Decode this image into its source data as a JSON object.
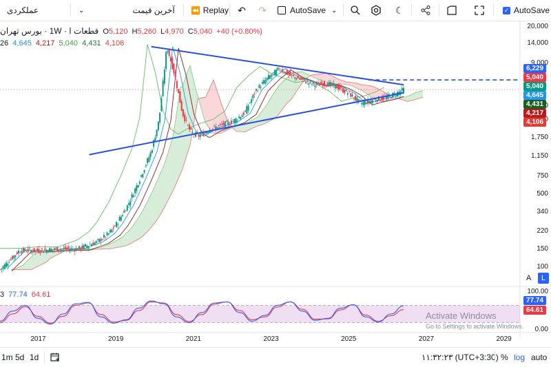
{
  "toolbar": {
    "performance_label": "عملکردی",
    "price_type_label": "آخرین قیمت",
    "replay_label": "Replay",
    "autosave_label": "AutoSave",
    "autosave_toggle_label": "AutoSave"
  },
  "legend": {
    "main": "قطعات ا · 1W · بورس تهران",
    "o_label": "O",
    "o_value": "5,120",
    "h_label": "H",
    "h_value": "5,260",
    "l_label": "L",
    "l_value": "4,970",
    "c_label": "C",
    "c_value": "5,040",
    "change": "+40 (+0.80%)",
    "ind_prefix": "26",
    "ind_values": [
      "4,645",
      "4,217",
      "5,040",
      "4,431",
      "4,106"
    ],
    "stoch_prefix": "3",
    "stoch_values": [
      "77.74",
      "64.61"
    ]
  },
  "price_axis": [
    "20,000",
    "14,000",
    "9,000",
    "6,229",
    "5,040",
    "3,500",
    "2,600",
    "1,750",
    "1,150",
    "750",
    "500",
    "340",
    "220",
    "150",
    "100"
  ],
  "badges": [
    {
      "text": "6,229",
      "color": "#2962ff"
    },
    {
      "text": "5,040",
      "color": "#f23645"
    },
    {
      "text": "5,040",
      "color": "#089981"
    },
    {
      "text": "4,645",
      "color": "#2196f3"
    },
    {
      "text": "4,431",
      "color": "#1b5e20"
    },
    {
      "text": "4,217",
      "color": "#b71c1c"
    },
    {
      "text": "4,106",
      "color": "#e53935"
    }
  ],
  "osc_axis": [
    "100.00",
    "0.00"
  ],
  "osc_badges": [
    {
      "text": "77.74",
      "color": "#2962ff"
    },
    {
      "text": "64.61",
      "color": "#f23645"
    }
  ],
  "axis_toggle": {
    "a": "A",
    "l": "L"
  },
  "x_labels": [
    "2017",
    "2019",
    "2021",
    "2023",
    "2025",
    "2027",
    "2029"
  ],
  "bottom": {
    "tf_1m": "1m",
    "tf_5d": "5d",
    "tf_1d": "1d",
    "clock": "۱۱:۳۲:۲۳ (UTC+3:30)",
    "percent": "%",
    "log": "log",
    "auto": "auto"
  },
  "watermark": {
    "title": "Activate Windows",
    "sub": "Go to Settings to activate Windows."
  },
  "chart_data": {
    "type": "line",
    "title": "قطعات ا · 1W · بورس تهران",
    "log_scale": true,
    "ylim": [
      80,
      22000
    ],
    "x_range": [
      "2016",
      "2029.4"
    ],
    "yticks": [
      20000,
      14000,
      9000,
      3500,
      2600,
      1750,
      1150,
      750,
      500,
      340,
      220,
      150,
      100
    ],
    "last_price": 5040,
    "price_line_level": 6229,
    "x": [
      2016.0,
      2016.5,
      2017.0,
      2017.5,
      2018.0,
      2018.5,
      2018.8,
      2019.0,
      2019.3,
      2019.6,
      2019.9,
      2020.1,
      2020.3,
      2020.5,
      2020.7,
      2020.9,
      2021.1,
      2021.4,
      2021.7,
      2022.0,
      2022.3,
      2022.6,
      2022.9,
      2023.2,
      2023.5,
      2023.8,
      2024.1,
      2024.4,
      2024.7,
      2025.0,
      2025.3,
      2025.6,
      2025.9,
      2026.2,
      2026.4
    ],
    "series": [
      {
        "values": [
          95,
          145,
          145,
          150,
          150,
          175,
          210,
          260,
          400,
          700,
          1300,
          2600,
          13000,
          7000,
          3000,
          2000,
          1800,
          2100,
          2300,
          2500,
          3000,
          5000,
          6500,
          8000,
          6800,
          6200,
          5600,
          5800,
          5300,
          4600,
          3700,
          4000,
          4200,
          4600,
          5040
        ]
      }
    ],
    "triangle": {
      "upper": {
        "from": [
          "2019.9",
          13000
        ],
        "to": [
          "2026.4",
          5600
        ]
      },
      "lower": {
        "from": [
          "2018.3",
          1200
        ],
        "to": [
          "2026.4",
          4700
        ]
      }
    },
    "oscillator": {
      "ylim": [
        0,
        100
      ],
      "levels": [
        80,
        20
      ],
      "k": [
        25,
        60,
        80,
        35,
        15,
        50,
        85,
        90,
        40,
        18,
        30,
        70,
        95,
        85,
        40,
        20,
        55,
        88,
        92,
        55,
        25,
        45,
        80,
        92,
        60,
        28,
        35,
        70,
        82,
        40,
        22,
        50,
        78
      ],
      "d": [
        20,
        50,
        75,
        42,
        18,
        42,
        80,
        88,
        48,
        22,
        28,
        62,
        92,
        88,
        48,
        24,
        48,
        84,
        92,
        62,
        30,
        40,
        74,
        92,
        66,
        32,
        33,
        64,
        82,
        46,
        25,
        44,
        65
      ]
    }
  }
}
